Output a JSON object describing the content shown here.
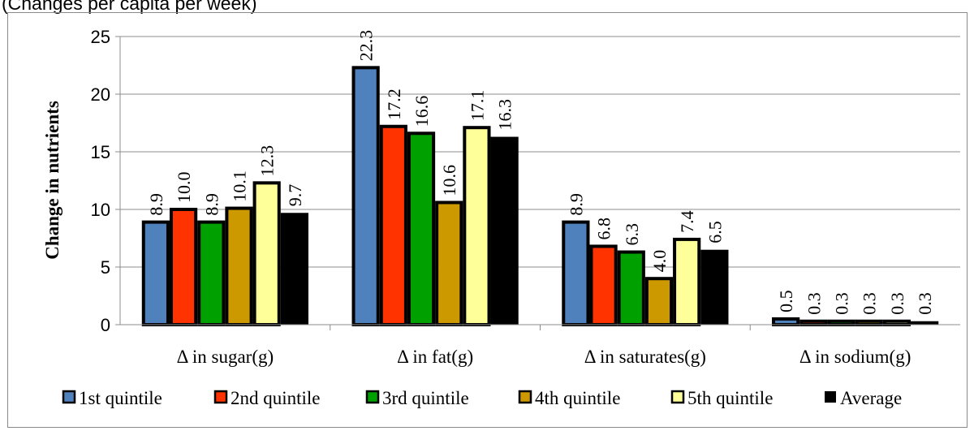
{
  "caption": "(Changes per capita per week)",
  "chart_data": {
    "type": "bar",
    "categories": [
      "Δ in sugar(g)",
      "Δ in fat(g)",
      "Δ in saturates(g)",
      "Δ in sodium(g)"
    ],
    "series": [
      {
        "name": "1st quintile",
        "color": "#4f81bd",
        "values": [
          8.9,
          22.3,
          8.9,
          0.5
        ],
        "labels": [
          "8.9",
          "22.3",
          "8.9",
          "0.5"
        ]
      },
      {
        "name": "2nd quintile",
        "color": "#ff3300",
        "values": [
          10.0,
          17.2,
          6.8,
          0.3
        ],
        "labels": [
          "10.0",
          "17.2",
          "6.8",
          "0.3"
        ]
      },
      {
        "name": "3rd quintile",
        "color": "#00a000",
        "values": [
          8.9,
          16.6,
          6.3,
          0.3
        ],
        "labels": [
          "8.9",
          "16.6",
          "6.3",
          "0.3"
        ]
      },
      {
        "name": "4th quintile",
        "color": "#cc9900",
        "values": [
          10.1,
          10.6,
          4.0,
          0.3
        ],
        "labels": [
          "10.1",
          "10.6",
          "4.0",
          "0.3"
        ]
      },
      {
        "name": "5th quintile",
        "color": "#ffff99",
        "values": [
          12.3,
          17.1,
          7.4,
          0.3
        ],
        "labels": [
          "12.3",
          "17.1",
          "7.4",
          "0.3"
        ]
      },
      {
        "name": "Average",
        "color": "#000000",
        "values": [
          9.7,
          16.3,
          6.5,
          0.3
        ],
        "labels": [
          "9.7",
          "16.3",
          "6.5",
          "0.3"
        ]
      }
    ],
    "ylabel": "Change in nutrients",
    "xlabel": "",
    "ylim": [
      0,
      25
    ],
    "yticks": [
      "0",
      "5",
      "10",
      "15",
      "20",
      "25"
    ],
    "grid": true,
    "legend": "bottom"
  }
}
